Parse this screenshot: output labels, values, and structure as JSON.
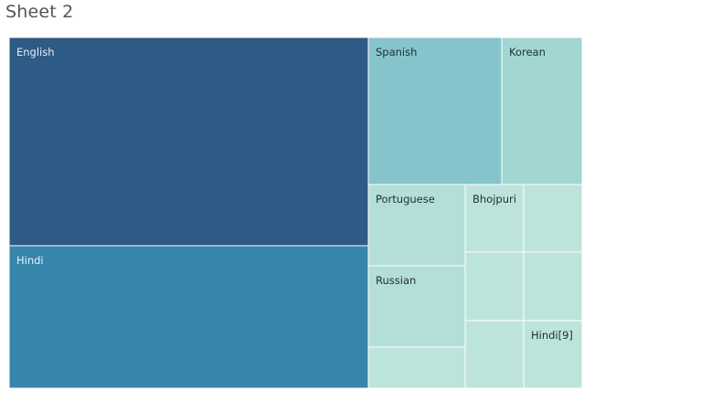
{
  "sheet": {
    "title": "Sheet 2"
  },
  "chart_data": {
    "type": "treemap",
    "title": "",
    "series": [
      {
        "name": "English",
        "value": 90.2,
        "color": "#2e5a86",
        "label_color": "#e8eef5"
      },
      {
        "name": "Hindi",
        "value": 60.9,
        "color": "#3686ac",
        "label_color": "#e8f2f8"
      },
      {
        "name": "Spanish",
        "value": 23.4,
        "color": "#86c4cc",
        "label_color": "#1f2f33"
      },
      {
        "name": "Korean",
        "value": 13.9,
        "color": "#a2d6d2",
        "label_color": "#1f2f33"
      },
      {
        "name": "Portuguese",
        "value": 9.5,
        "color": "#b3dfd8",
        "label_color": "#1f2f33"
      },
      {
        "name": "Russian",
        "value": 9.1,
        "color": "#b3dfd8",
        "label_color": "#1f2f33"
      },
      {
        "name": "Bhojpuri",
        "value": 4.7,
        "color": "#bde4da",
        "label_color": "#1f2f33"
      },
      {
        "name": "",
        "value": 4.2,
        "color": "#bde4da",
        "label_color": "#1f2f33"
      },
      {
        "name": "",
        "value": 4.7,
        "color": "#bde4da",
        "label_color": "#1f2f33"
      },
      {
        "name": "",
        "value": 4.7,
        "color": "#bde4da",
        "label_color": "#1f2f33"
      },
      {
        "name": "",
        "value": 4.7,
        "color": "#bde4da",
        "label_color": "#1f2f33"
      },
      {
        "name": "",
        "value": 4.7,
        "color": "#bde4da",
        "label_color": "#1f2f33"
      },
      {
        "name": "Hindi[9]",
        "value": 4.6,
        "color": "#bde4da",
        "label_color": "#1f2f33"
      }
    ]
  }
}
